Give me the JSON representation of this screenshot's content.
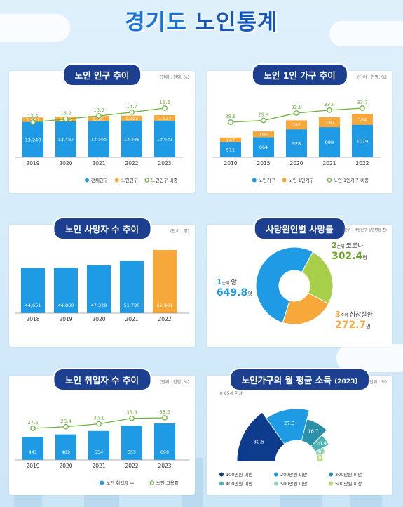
{
  "title_part1": "경기도",
  "title_part2": "노인통계",
  "colors": {
    "blue": "#1e9be4",
    "orange": "#f6a93a",
    "green": "#6db33f",
    "navy": "#1d3f8f",
    "dark_blue": "#0e3c8c"
  },
  "panel1": {
    "title": "노인 인구 추이",
    "unit": "(단위 : 천명, %)"
  },
  "panel2": {
    "title": "노인 1인 가구 추이",
    "unit": "(단위 : 천명, %)"
  },
  "panel3": {
    "title": "노인 사망자 수 추이",
    "unit": "(단위 : 명)"
  },
  "panel4": {
    "title": "사망원인별 사망률",
    "unit": "(단위 : 해당인구 십만명당 명)",
    "rank1": {
      "rank": "1",
      "rank_suffix": "순위",
      "name": "암",
      "value": "649.8",
      "unit": "명"
    },
    "rank2": {
      "rank": "2",
      "rank_suffix": "순위",
      "name": "코로나",
      "value": "302.4",
      "unit": "명"
    },
    "rank3": {
      "rank": "3",
      "rank_suffix": "순위",
      "name": "심장질환",
      "value": "272.7",
      "unit": "명"
    }
  },
  "panel5": {
    "title": "노인 취업자 수 추이",
    "unit": "(단위 : 천명, %)"
  },
  "panel6": {
    "title": "노인가구의 월 평균 소득",
    "title_year": "(2023)",
    "unit": "(단위 : %)",
    "note": "※ 65세 이상"
  },
  "chart_data": [
    {
      "type": "bar",
      "categories": [
        "2019",
        "2020",
        "2021",
        "2022",
        "2023"
      ],
      "series": [
        {
          "name": "전체인구",
          "values": [
            13240,
            13427,
            13565,
            13589,
            13631
          ],
          "labels": [
            "13,240",
            "13,427",
            "13,565",
            "13,589",
            "13,631"
          ]
        },
        {
          "name": "노인인구",
          "values": [
            1661,
            1775,
            1881,
            1993,
            2123
          ],
          "labels": [
            "1,661",
            "1,775",
            "1,881",
            "1,993",
            "2,123"
          ]
        },
        {
          "name": "노인인구 비중",
          "values": [
            12.5,
            13.2,
            13.9,
            14.7,
            15.6
          ],
          "labels": [
            "12.5",
            "13.2",
            "13.9",
            "14.7",
            "15.6"
          ]
        }
      ]
    },
    {
      "type": "bar",
      "categories": [
        "2010",
        "2015",
        "2020",
        "2021",
        "2022"
      ],
      "series": [
        {
          "name": "노인가구",
          "values": [
            511,
            664,
            928,
            999,
            1079
          ],
          "labels": [
            "511",
            "664",
            "928",
            "999",
            "1079"
          ]
        },
        {
          "name": "노인 1인가구",
          "values": [
            147,
            195,
            297,
            330,
            364
          ],
          "labels": [
            "147",
            "195",
            "297",
            "330",
            "364"
          ]
        },
        {
          "name": "노인 1인가구 비중",
          "values": [
            28.8,
            29.4,
            32.0,
            33.0,
            33.7
          ],
          "labels": [
            "28.8",
            "29.4",
            "32.0",
            "33.0",
            "33.7"
          ]
        }
      ]
    },
    {
      "type": "bar",
      "categories": [
        "2018",
        "2019",
        "2020",
        "2021",
        "2022"
      ],
      "values": [
        44651,
        44860,
        47329,
        51790,
        62401
      ],
      "labels": [
        "44,651",
        "44,860",
        "47,329",
        "51,790",
        "62,401"
      ]
    },
    {
      "type": "pie",
      "categories": [
        "암",
        "코로나",
        "심장질환"
      ],
      "values": [
        649.8,
        302.4,
        272.7
      ]
    },
    {
      "type": "bar",
      "categories": [
        "2019",
        "2020",
        "2021",
        "2022",
        "2023"
      ],
      "series": [
        {
          "name": "노인 취업자 수",
          "values": [
            441,
            489,
            554,
            655,
            699
          ],
          "labels": [
            "441",
            "489",
            "554",
            "655",
            "699"
          ]
        },
        {
          "name": "노인 고용률",
          "values": [
            27.5,
            28.4,
            30.1,
            33.3,
            33.6
          ],
          "labels": [
            "27.5",
            "28.4",
            "30.1",
            "33.3",
            "33.6"
          ]
        }
      ]
    },
    {
      "type": "pie",
      "categories": [
        "100만원 미만",
        "200만원 미만",
        "300만원 미만",
        "400만원 미만",
        "500만원 미만",
        "500만원 이상"
      ],
      "values": [
        30.5,
        27.3,
        16.7,
        10.4,
        6.3,
        8.8
      ],
      "labels": [
        "30.5",
        "27.3",
        "16.7",
        "10.4",
        "6.3",
        "8.8"
      ],
      "colors": [
        "#0e3c8c",
        "#1e9be4",
        "#2a8fa7",
        "#4db3b4",
        "#8fd3b8",
        "#b7d97a"
      ]
    }
  ]
}
